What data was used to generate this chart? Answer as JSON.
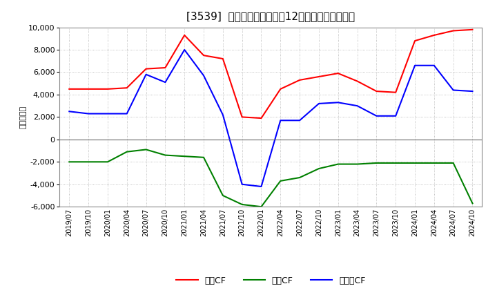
{
  "title": "[3539]  キャッシュフローの12か月移動合計の推移",
  "ylabel": "（百万円）",
  "ylim": [
    -6000,
    10000
  ],
  "yticks": [
    -6000,
    -4000,
    -2000,
    0,
    2000,
    4000,
    6000,
    8000,
    10000
  ],
  "x_labels": [
    "2019/07",
    "2019/10",
    "2020/01",
    "2020/04",
    "2020/07",
    "2020/10",
    "2021/01",
    "2021/04",
    "2021/07",
    "2021/10",
    "2022/01",
    "2022/04",
    "2022/07",
    "2022/10",
    "2023/01",
    "2023/04",
    "2023/07",
    "2023/10",
    "2024/01",
    "2024/04",
    "2024/07",
    "2024/10"
  ],
  "eigyo_cf": [
    4500,
    4500,
    4500,
    4600,
    6300,
    6400,
    9300,
    7500,
    7200,
    2000,
    1900,
    4500,
    5300,
    5600,
    5900,
    5200,
    4300,
    4200,
    8800,
    9300,
    9700,
    9800
  ],
  "toshi_cf": [
    -2000,
    -2000,
    -2000,
    -1100,
    -900,
    -1400,
    -1500,
    -1600,
    -5000,
    -5800,
    -6000,
    -3700,
    -3400,
    -2600,
    -2200,
    -2200,
    -2100,
    -2100,
    -2100,
    -2100,
    -2100,
    -5700
  ],
  "free_cf": [
    2500,
    2300,
    2300,
    2300,
    5800,
    5100,
    8000,
    5700,
    2200,
    -4000,
    -4200,
    1700,
    1700,
    3200,
    3300,
    3000,
    2100,
    2100,
    6600,
    6600,
    4400,
    4300
  ],
  "eigyo_color": "#ff0000",
  "toshi_color": "#008000",
  "free_color": "#0000ff",
  "line_width": 1.5,
  "background_color": "#ffffff",
  "plot_bg_color": "#ffffff",
  "grid_color": "#b0b0b0",
  "legend_labels": [
    "営業CF",
    "投資CF",
    "フリーCF"
  ]
}
